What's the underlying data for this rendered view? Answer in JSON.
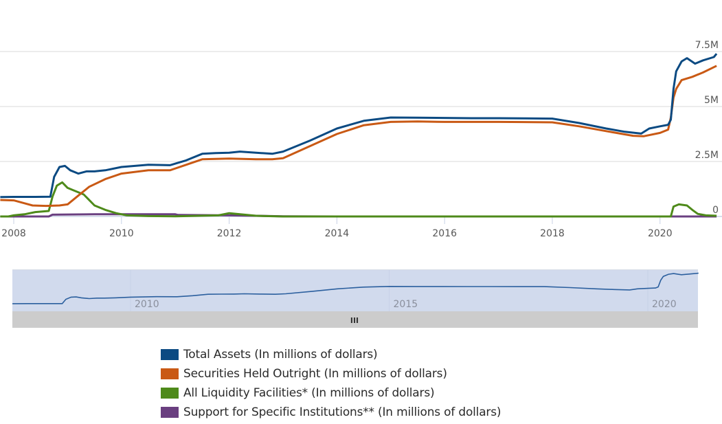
{
  "chart_data": {
    "type": "line",
    "title": "",
    "xlabel": "",
    "ylabel": "",
    "x_ticks": [
      "2008",
      "2010",
      "2012",
      "2014",
      "2016",
      "2018",
      "2020"
    ],
    "y_ticks": [
      "0",
      "2.5M",
      "5M",
      "7.5M"
    ],
    "y_tick_values": [
      0,
      2.5,
      5,
      7.5
    ],
    "ylim": [
      0,
      7.5
    ],
    "xlim": [
      2007.75,
      2021.05
    ],
    "y_units": "millions of millions (M)",
    "grid": true,
    "legend_position": "bottom",
    "series": [
      {
        "name": "Total Assets (In millions of dollars)",
        "color": "#0b4a82",
        "x": [
          2007.75,
          2008.0,
          2008.4,
          2008.68,
          2008.75,
          2008.85,
          2008.95,
          2009.05,
          2009.2,
          2009.35,
          2009.5,
          2009.7,
          2010.0,
          2010.5,
          2010.9,
          2011.2,
          2011.5,
          2011.75,
          2012.0,
          2012.2,
          2012.5,
          2012.8,
          2013.0,
          2013.5,
          2014.0,
          2014.5,
          2015.0,
          2015.5,
          2016.0,
          2016.5,
          2017.0,
          2017.5,
          2018.0,
          2018.5,
          2019.0,
          2019.35,
          2019.65,
          2019.8,
          2020.0,
          2020.15,
          2020.2,
          2020.25,
          2020.3,
          2020.4,
          2020.5,
          2020.65,
          2020.8,
          2021.0,
          2021.05
        ],
        "values": [
          0.88,
          0.89,
          0.89,
          0.9,
          1.8,
          2.25,
          2.3,
          2.1,
          1.95,
          2.05,
          2.05,
          2.1,
          2.25,
          2.35,
          2.33,
          2.55,
          2.85,
          2.88,
          2.9,
          2.95,
          2.9,
          2.85,
          2.95,
          3.45,
          4.0,
          4.35,
          4.5,
          4.49,
          4.48,
          4.47,
          4.47,
          4.46,
          4.45,
          4.25,
          4.0,
          3.85,
          3.77,
          4.0,
          4.1,
          4.17,
          4.4,
          5.8,
          6.6,
          7.05,
          7.2,
          6.95,
          7.1,
          7.25,
          7.4
        ]
      },
      {
        "name": "Securities Held Outright (In millions of dollars)",
        "color": "#c95914",
        "x": [
          2007.75,
          2008.0,
          2008.2,
          2008.35,
          2008.6,
          2008.85,
          2009.0,
          2009.2,
          2009.4,
          2009.7,
          2010.0,
          2010.5,
          2010.9,
          2011.2,
          2011.5,
          2011.75,
          2012.0,
          2012.5,
          2012.8,
          2013.0,
          2013.5,
          2014.0,
          2014.5,
          2015.0,
          2015.5,
          2016.0,
          2017.0,
          2018.0,
          2018.5,
          2019.0,
          2019.5,
          2019.7,
          2020.0,
          2020.15,
          2020.2,
          2020.25,
          2020.3,
          2020.4,
          2020.6,
          2020.8,
          2021.05
        ],
        "values": [
          0.75,
          0.73,
          0.6,
          0.5,
          0.48,
          0.5,
          0.55,
          0.95,
          1.35,
          1.7,
          1.95,
          2.1,
          2.1,
          2.35,
          2.6,
          2.62,
          2.63,
          2.6,
          2.6,
          2.65,
          3.2,
          3.75,
          4.15,
          4.3,
          4.32,
          4.3,
          4.3,
          4.28,
          4.1,
          3.88,
          3.67,
          3.65,
          3.8,
          3.95,
          4.5,
          5.4,
          5.8,
          6.2,
          6.35,
          6.55,
          6.85
        ]
      },
      {
        "name": "All Liquidity Facilities* (In millions of dollars)",
        "color": "#4e8a1a",
        "x": [
          2007.75,
          2007.9,
          2008.0,
          2008.2,
          2008.4,
          2008.65,
          2008.72,
          2008.8,
          2008.9,
          2009.0,
          2009.1,
          2009.3,
          2009.5,
          2009.7,
          2009.9,
          2010.1,
          2010.5,
          2011.0,
          2011.8,
          2012.0,
          2012.2,
          2012.5,
          2013.0,
          2014.0,
          2016.0,
          2018.0,
          2020.2,
          2020.25,
          2020.35,
          2020.5,
          2020.6,
          2020.7,
          2020.85,
          2021.05
        ],
        "values": [
          0.0,
          0.0,
          0.05,
          0.1,
          0.2,
          0.25,
          0.9,
          1.4,
          1.55,
          1.3,
          1.2,
          1.0,
          0.5,
          0.3,
          0.15,
          0.05,
          0.02,
          0.01,
          0.05,
          0.15,
          0.1,
          0.03,
          0.0,
          0.0,
          0.0,
          0.0,
          0.0,
          0.45,
          0.55,
          0.5,
          0.3,
          0.12,
          0.05,
          0.03
        ]
      },
      {
        "name": "Support for Specific Institutions** (In millions of dollars)",
        "color": "#6a3f80",
        "x": [
          2007.75,
          2008.65,
          2008.72,
          2009.5,
          2010.0,
          2010.5,
          2011.0,
          2011.05,
          2012.0,
          2012.5,
          2013.0,
          2014.0,
          2016.0,
          2018.0,
          2020.0,
          2021.05
        ],
        "values": [
          0.0,
          0.0,
          0.08,
          0.1,
          0.1,
          0.1,
          0.1,
          0.07,
          0.05,
          0.03,
          0.01,
          0.0,
          0.0,
          0.0,
          0.0,
          0.0
        ]
      }
    ]
  },
  "navigator": {
    "x_ticks": [
      "2010",
      "2015",
      "2020"
    ],
    "x_tick_values": [
      2010,
      2015,
      2020
    ],
    "xlim": [
      2007.0,
      2021.05
    ],
    "selected_range": [
      2007.75,
      2021.05
    ],
    "scrollbar_grip_icon": "grip-lines-icon",
    "scrollbar_grip_glyph": "III",
    "series_color": "#2b5f9e",
    "mask_color": "#c9d4ea",
    "scrollbar_color": "#cccccc"
  },
  "legend": {
    "items": [
      {
        "label": "Total Assets (In millions of dollars)",
        "color": "#0b4a82"
      },
      {
        "label": "Securities Held Outright (In millions of dollars)",
        "color": "#c95914"
      },
      {
        "label": "All Liquidity Facilities* (In millions of dollars)",
        "color": "#4e8a1a"
      },
      {
        "label": "Support for Specific Institutions** (In millions of dollars)",
        "color": "#6a3f80"
      }
    ]
  }
}
